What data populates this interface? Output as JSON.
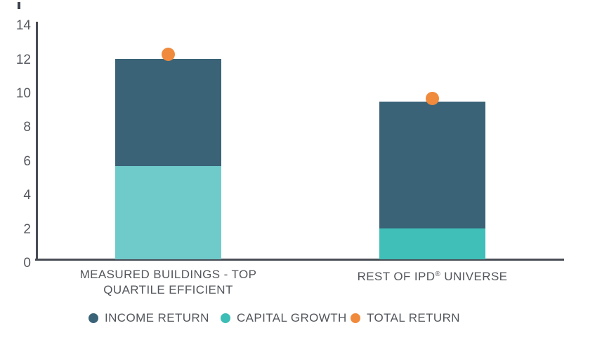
{
  "chart_data": {
    "type": "bar",
    "stacked": true,
    "categories": [
      "MEASURED BUILDINGS - TOP QUARTILE EFFICIENT",
      "REST OF IPD® UNIVERSE"
    ],
    "category_lines": [
      [
        "MEASURED BUILDINGS - TOP",
        "QUARTILE EFFICIENT"
      ],
      [
        "REST OF IPD® UNIVERSE"
      ]
    ],
    "series": [
      {
        "name": "CAPITAL GROWTH",
        "render": "bar-segment",
        "values": [
          5.5,
          1.8
        ],
        "colors": [
          "#6fcaca",
          "#3fbfb8"
        ]
      },
      {
        "name": "INCOME RETURN",
        "render": "bar-segment",
        "values": [
          6.3,
          7.5
        ],
        "colors": [
          "#3a6378",
          "#3a6378"
        ]
      },
      {
        "name": "TOTAL RETURN",
        "render": "point",
        "values": [
          12.1,
          9.5
        ],
        "colors": [
          "#f08a3c",
          "#f08a3c"
        ]
      }
    ],
    "stack_order_bottom_to_top": [
      "CAPITAL GROWTH",
      "INCOME RETURN"
    ],
    "title": "",
    "xlabel": "",
    "ylabel": "",
    "ylim": [
      0,
      14
    ],
    "yticks": [
      "0",
      "2",
      "4",
      "6",
      "8",
      "10",
      "12",
      "14"
    ],
    "grid": false,
    "legend_position": "bottom",
    "colors": {
      "income_return": "#3a6378",
      "capital_growth_bar1": "#6fcaca",
      "capital_growth_bar2": "#3fbfb8",
      "total_return": "#f08a3c",
      "axis": "#484c55",
      "text": "#53565c"
    }
  },
  "legend": {
    "items": [
      {
        "label": "INCOME RETURN",
        "color": "#3a6378"
      },
      {
        "label": "CAPITAL GROWTH",
        "color": "#3cbdb5"
      },
      {
        "label": "TOTAL RETURN",
        "color": "#f08a3c"
      }
    ]
  }
}
